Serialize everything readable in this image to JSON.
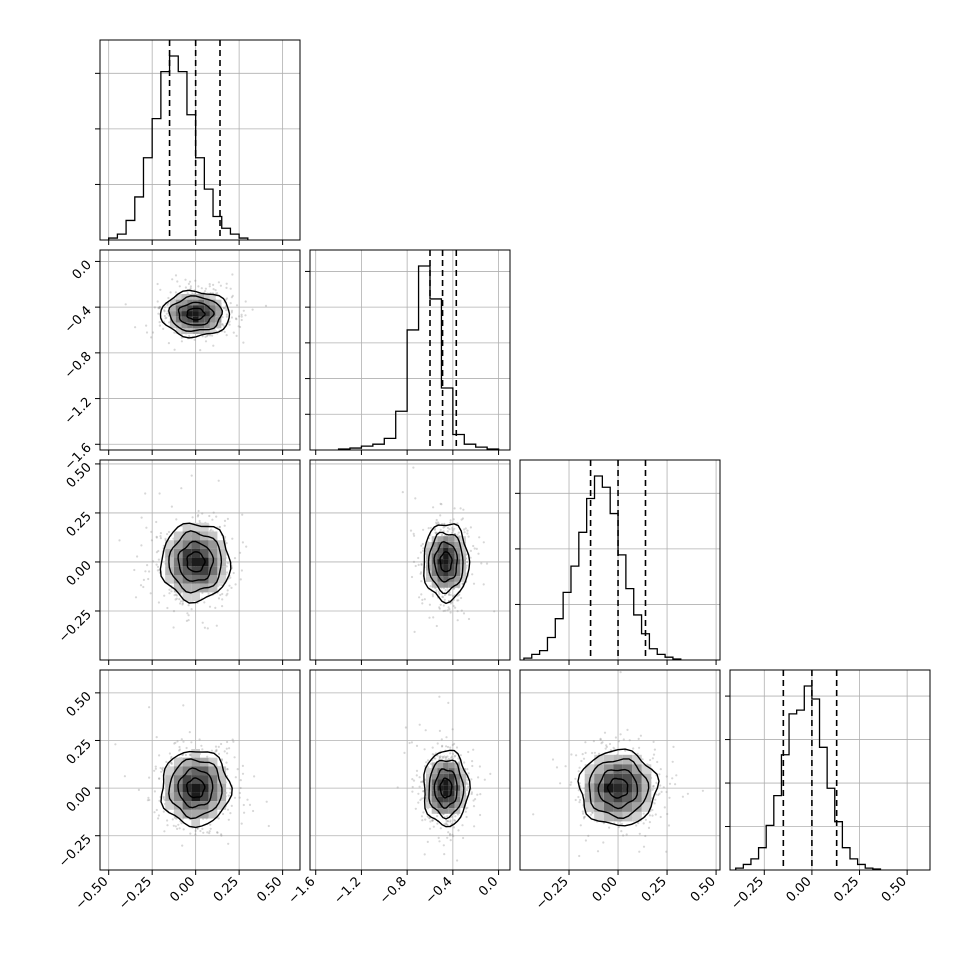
{
  "chart_data": {
    "type": "corner",
    "description_free": true,
    "n_params": 4,
    "colors": {
      "line": "#000000",
      "grid": "#b0b0b0",
      "scatter": "#8c8c8c",
      "background": "#ffffff"
    },
    "grid": true,
    "quantiles_shown": [
      0.16,
      0.5,
      0.84
    ],
    "params": [
      {
        "range": [
          -0.55,
          0.6
        ],
        "mean": 0.0,
        "sd": 0.1,
        "quantile_lines": [
          -0.15,
          0.0,
          0.14
        ],
        "bin_width": 0.05,
        "hist_counts": [
          0.01,
          0.03,
          0.1,
          0.22,
          0.42,
          0.62,
          0.86,
          0.94,
          0.86,
          0.64,
          0.42,
          0.26,
          0.12,
          0.06,
          0.03,
          0.01
        ],
        "hist_start": -0.5,
        "hist_ticks": [
          "0.25",
          "0.50",
          "0.75"
        ],
        "tick_labels": [
          "−0.50",
          "−0.25",
          "0.00",
          "0.25",
          "0.50"
        ],
        "tick_values": [
          -0.5,
          -0.25,
          0.0,
          0.25,
          0.5
        ]
      },
      {
        "range": [
          -1.65,
          0.1
        ],
        "mean": -0.46,
        "sd": 0.1,
        "quantile_lines": [
          -0.6,
          -0.49,
          -0.37
        ],
        "bin_width": 0.1,
        "hist_counts": [
          0.005,
          0.01,
          0.02,
          0.03,
          0.06,
          0.2,
          0.62,
          0.95,
          0.78,
          0.32,
          0.08,
          0.03,
          0.015,
          0.005
        ],
        "hist_start": -1.4,
        "hist_ticks": [
          "0.2",
          "0.4",
          "0.6",
          "0.8",
          "1.0"
        ],
        "tick_labels": [
          "−1.6",
          "−1.2",
          "−0.8",
          "−0.4",
          "0.0"
        ],
        "tick_values": [
          -1.6,
          -1.2,
          -0.8,
          -0.4,
          0.0
        ]
      },
      {
        "range": [
          -0.5,
          0.52
        ],
        "mean": 0.0,
        "sd": 0.1,
        "quantile_lines": [
          -0.14,
          0.0,
          0.14
        ],
        "bin_width": 0.04,
        "hist_counts": [
          0.01,
          0.03,
          0.05,
          0.12,
          0.22,
          0.36,
          0.5,
          0.68,
          0.86,
          0.98,
          0.92,
          0.78,
          0.56,
          0.38,
          0.24,
          0.14,
          0.06,
          0.03,
          0.015,
          0.005
        ],
        "hist_start": -0.48,
        "hist_ticks": [
          "0.25",
          "0.50",
          "0.75"
        ],
        "tick_labels": [
          "−0.25",
          "0.00",
          "0.25",
          "0.50"
        ],
        "tick_values": [
          -0.25,
          0.0,
          0.25,
          0.5
        ]
      },
      {
        "range": [
          -0.43,
          0.62
        ],
        "mean": 0.0,
        "sd": 0.1,
        "quantile_lines": [
          -0.15,
          0.0,
          0.13
        ],
        "bin_width": 0.04,
        "hist_counts": [
          0.01,
          0.03,
          0.06,
          0.12,
          0.24,
          0.4,
          0.62,
          0.84,
          0.86,
          0.99,
          0.92,
          0.66,
          0.44,
          0.26,
          0.12,
          0.06,
          0.03,
          0.01,
          0.005
        ],
        "hist_start": -0.4,
        "hist_ticks": [
          "0.25",
          "0.50",
          "0.75",
          "1.00"
        ],
        "tick_labels": [
          "−0.25",
          "0.00",
          "0.25",
          "0.50"
        ],
        "tick_values": [
          -0.25,
          0.0,
          0.25,
          0.5
        ]
      }
    ],
    "contour_levels": [
      0.12,
      0.39,
      0.68,
      0.86
    ],
    "row_y_ticks": [
      null,
      {
        "labels": [
          "0.0",
          "−0.4",
          "−0.8",
          "−1.2",
          "−1.6"
        ],
        "values": [
          0.0,
          -0.4,
          -0.8,
          -1.2,
          -1.6
        ]
      },
      {
        "labels": [
          "0.50",
          "0.25",
          "0.00",
          "−0.25"
        ],
        "values": [
          0.5,
          0.25,
          0.0,
          -0.25
        ]
      },
      {
        "labels": [
          "0.50",
          "0.25",
          "0.00",
          "−0.25"
        ],
        "values": [
          0.5,
          0.25,
          0.0,
          -0.25
        ]
      }
    ],
    "title": "",
    "xlabel": "",
    "ylabel": ""
  }
}
